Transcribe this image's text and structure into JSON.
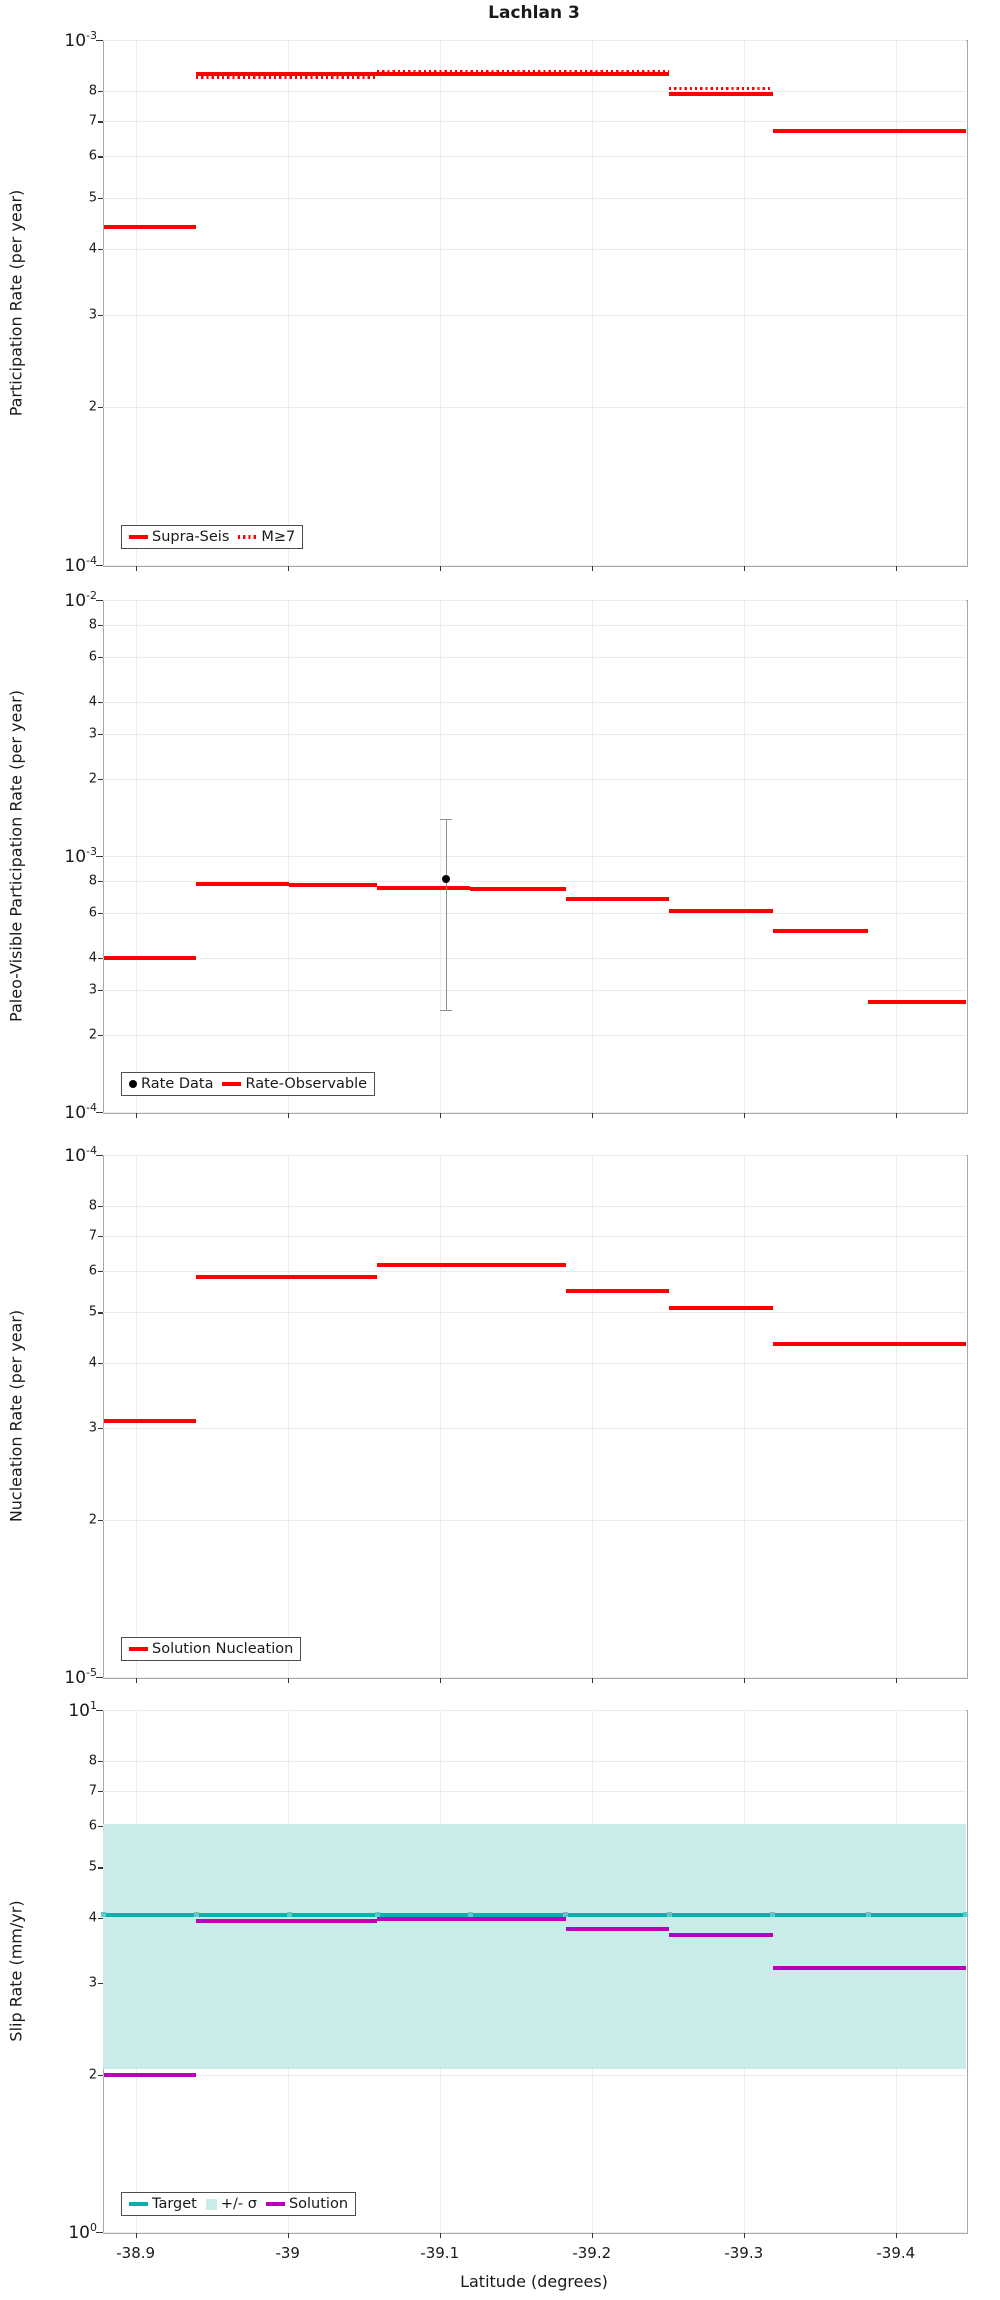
{
  "title": "Lachlan 3",
  "xlabel": "Latitude (degrees)",
  "x_axis": {
    "min": -38.8785,
    "max": -39.4462,
    "ticks": [
      {
        "value": -38.9,
        "label": "-38.9"
      },
      {
        "value": -39.0,
        "label": "-39"
      },
      {
        "value": -39.1,
        "label": "-39.1"
      },
      {
        "value": -39.2,
        "label": "-39.2"
      },
      {
        "value": -39.3,
        "label": "-39.3"
      },
      {
        "value": -39.4,
        "label": "-39.4"
      }
    ]
  },
  "colors": {
    "red": "#ff0000",
    "teal": "#0ab0ac",
    "teal_marker": "#5fc9c6",
    "band": "#c9ecea",
    "purple": "#bb00bb",
    "black": "#000000",
    "error_bar": "#909090",
    "grid": "#ececec",
    "spine": "#a8a8a8",
    "text": "#1a1a1a"
  },
  "chart_data": [
    {
      "type": "step",
      "name": "participation-rate",
      "ylabel": "Participation Rate (per year)",
      "ylim": [
        0.0001,
        0.001
      ],
      "majors": [
        {
          "value": 0.001,
          "exp": "-3"
        },
        {
          "value": 0.0001,
          "exp": "-4"
        }
      ],
      "minors": [
        {
          "value": 0.0008,
          "label": "8"
        },
        {
          "value": 0.0007,
          "label": "7"
        },
        {
          "value": 0.0006,
          "label": "6"
        },
        {
          "value": 0.0005,
          "label": "5"
        },
        {
          "value": 0.0004,
          "label": "4"
        },
        {
          "value": 0.0003,
          "label": "3"
        },
        {
          "value": 0.0002,
          "label": "2"
        }
      ],
      "series": [
        {
          "name": "Supra-Seis",
          "style": "solid",
          "color": "#ff0000",
          "segments": [
            [
              -38.879,
              -38.94,
              0.00044
            ],
            [
              -38.94,
              -39.251,
              0.00086
            ],
            [
              -39.251,
              -39.319,
              0.00079
            ],
            [
              -39.319,
              -39.446,
              0.00067
            ]
          ]
        },
        {
          "name": "M≥7",
          "style": "dotted",
          "color": "#ff0000",
          "segments": [
            [
              -38.879,
              -38.94,
              0.00044
            ],
            [
              -38.94,
              -39.059,
              0.00085
            ],
            [
              -39.059,
              -39.251,
              0.00087
            ],
            [
              -39.251,
              -39.319,
              0.00081
            ],
            [
              -39.319,
              -39.446,
              0.00067
            ]
          ]
        }
      ],
      "legend": [
        {
          "label": "Supra-Seis",
          "swatch": "solid-line",
          "color": "#ff0000"
        },
        {
          "label": "M≥7",
          "swatch": "dotted-line",
          "color": "#ff0000"
        }
      ]
    },
    {
      "type": "step",
      "name": "paleo-visible-participation-rate",
      "ylabel": "Paleo-Visible Participation Rate (per year)",
      "ylim": [
        0.0001,
        0.01
      ],
      "majors": [
        {
          "value": 0.01,
          "exp": "-2"
        },
        {
          "value": 0.001,
          "exp": "-3"
        },
        {
          "value": 0.0001,
          "exp": "-4"
        }
      ],
      "minors": [
        {
          "value": 0.008,
          "label": "8"
        },
        {
          "value": 0.006,
          "label": "6"
        },
        {
          "value": 0.004,
          "label": "4"
        },
        {
          "value": 0.003,
          "label": "3"
        },
        {
          "value": 0.002,
          "label": "2"
        },
        {
          "value": 0.0008,
          "label": "8"
        },
        {
          "value": 0.0006,
          "label": "6"
        },
        {
          "value": 0.0004,
          "label": "4"
        },
        {
          "value": 0.0003,
          "label": "3"
        },
        {
          "value": 0.0002,
          "label": "2"
        }
      ],
      "series": [
        {
          "name": "Rate-Observable",
          "style": "solid",
          "color": "#ff0000",
          "segments": [
            [
              -38.879,
              -38.94,
              0.0004
            ],
            [
              -38.94,
              -39.001,
              0.00078
            ],
            [
              -39.001,
              -39.059,
              0.00077
            ],
            [
              -39.059,
              -39.12,
              0.00075
            ],
            [
              -39.12,
              -39.183,
              0.00074
            ],
            [
              -39.183,
              -39.251,
              0.00068
            ],
            [
              -39.251,
              -39.319,
              0.00061
            ],
            [
              -39.319,
              -39.382,
              0.00051
            ],
            [
              -39.382,
              -39.446,
              0.00027
            ]
          ]
        }
      ],
      "point": {
        "x": -39.104,
        "y": 0.00081,
        "err_lo": 0.00025,
        "err_hi": 0.0014
      },
      "legend": [
        {
          "label": "Rate Data",
          "swatch": "dot",
          "color": "#000000"
        },
        {
          "label": "Rate-Observable",
          "swatch": "solid-line",
          "color": "#ff0000"
        }
      ]
    },
    {
      "type": "step",
      "name": "nucleation-rate",
      "ylabel": "Nucleation Rate (per year)",
      "ylim": [
        1e-05,
        0.0001
      ],
      "majors": [
        {
          "value": 0.0001,
          "exp": "-4"
        },
        {
          "value": 1e-05,
          "exp": "-5"
        }
      ],
      "minors": [
        {
          "value": 8e-05,
          "label": "8"
        },
        {
          "value": 7e-05,
          "label": "7"
        },
        {
          "value": 6e-05,
          "label": "6"
        },
        {
          "value": 5e-05,
          "label": "5"
        },
        {
          "value": 4e-05,
          "label": "4"
        },
        {
          "value": 3e-05,
          "label": "3"
        },
        {
          "value": 2e-05,
          "label": "2"
        }
      ],
      "series": [
        {
          "name": "Solution Nucleation",
          "style": "solid",
          "color": "#ff0000",
          "segments": [
            [
              -38.879,
              -38.94,
              3.1e-05
            ],
            [
              -38.94,
              -39.059,
              5.85e-05
            ],
            [
              -39.059,
              -39.183,
              6.15e-05
            ],
            [
              -39.183,
              -39.251,
              5.5e-05
            ],
            [
              -39.251,
              -39.319,
              5.1e-05
            ],
            [
              -39.319,
              -39.446,
              4.35e-05
            ]
          ]
        }
      ],
      "legend": [
        {
          "label": "Solution Nucleation",
          "swatch": "solid-line",
          "color": "#ff0000"
        }
      ]
    },
    {
      "type": "step",
      "name": "slip-rate",
      "ylabel": "Slip Rate (mm/yr)",
      "ylim": [
        1,
        10
      ],
      "majors": [
        {
          "value": 10,
          "exp": "1"
        },
        {
          "value": 1,
          "exp": "0"
        }
      ],
      "minors": [
        {
          "value": 8,
          "label": "8"
        },
        {
          "value": 7,
          "label": "7"
        },
        {
          "value": 6,
          "label": "6"
        },
        {
          "value": 5,
          "label": "5"
        },
        {
          "value": 4,
          "label": "4"
        },
        {
          "value": 3,
          "label": "3"
        },
        {
          "value": 2,
          "label": "2"
        }
      ],
      "band": {
        "lo": 2.05,
        "hi": 6.05
      },
      "target": {
        "value": 4.05,
        "marker_lats": [
          -38.879,
          -38.94,
          -39.001,
          -39.059,
          -39.12,
          -39.183,
          -39.251,
          -39.319,
          -39.382,
          -39.446
        ]
      },
      "series": [
        {
          "name": "Solution",
          "style": "solid",
          "color": "#bb00bb",
          "segments": [
            [
              -38.879,
              -38.94,
              2.0
            ],
            [
              -38.94,
              -39.059,
              3.95
            ],
            [
              -39.059,
              -39.183,
              3.97
            ],
            [
              -39.183,
              -39.251,
              3.8
            ],
            [
              -39.251,
              -39.319,
              3.7
            ],
            [
              -39.319,
              -39.446,
              3.2
            ]
          ]
        }
      ],
      "legend": [
        {
          "label": "Target",
          "swatch": "solid-line",
          "color": "#0ab0ac"
        },
        {
          "label": "+/- σ",
          "swatch": "square",
          "color": "#c9ecea"
        },
        {
          "label": "Solution",
          "swatch": "solid-line",
          "color": "#bb00bb"
        }
      ]
    }
  ]
}
